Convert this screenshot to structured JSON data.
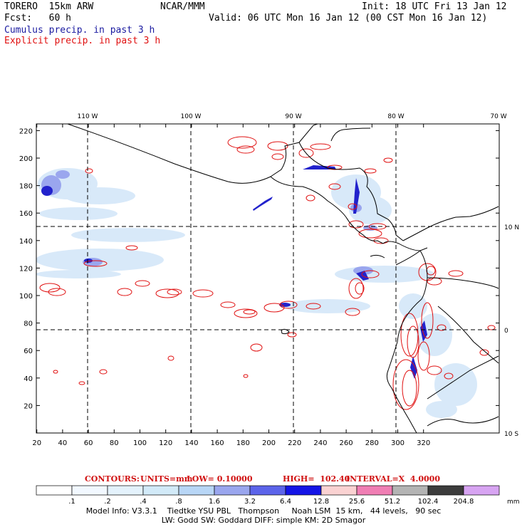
{
  "header": {
    "model": "TORERO  15km ARW",
    "org": "NCAR/MMM",
    "init": "Init: 18 UTC Fri 13 Jan 12",
    "fcst": "Fcst:   60 h",
    "valid": "Valid: 06 UTC Mon 16 Jan 12 (00 CST Mon 16 Jan 12)",
    "field1": "Cumulus precip. in past 3 h",
    "field2": "Explicit precip. in past 3 h"
  },
  "map": {
    "lon_labels": [
      "110 W",
      "100 W",
      "90 W",
      "80 W",
      "70 W"
    ],
    "lat_labels": [
      "10 N",
      "0",
      "10 S"
    ],
    "x_ticks": [
      "20",
      "40",
      "60",
      "80",
      "100",
      "120",
      "140",
      "160",
      "180",
      "200",
      "220",
      "240",
      "260",
      "280",
      "300",
      "320"
    ],
    "y_ticks": [
      "20",
      "40",
      "60",
      "80",
      "100",
      "120",
      "140",
      "160",
      "180",
      "200",
      "220"
    ],
    "colors": {
      "cumulus": "#2222cc",
      "explicit": "#e01010",
      "coast": "#000000",
      "grid": "#000000"
    }
  },
  "contour_info": {
    "contours": "CONTOURS:",
    "units": "UNITS=mm",
    "low": "LOW= 0.10000",
    "high": "HIGH=  102.40",
    "interval": "INTERVAL=X  4.0000"
  },
  "colorbar": {
    "labels": [
      ".1",
      ".2",
      ".4",
      ".8",
      "1.6",
      "3.2",
      "6.4",
      "12.8",
      "25.6",
      "51.2",
      "102.4",
      "204.8"
    ],
    "colors": [
      "#ffffff",
      "#f2f8ff",
      "#e4f2fc",
      "#d2eaf8",
      "#b8d6f6",
      "#9aa6ee",
      "#5c64ea",
      "#1414e6",
      "#fad2d2",
      "#f07eb4",
      "#b4b4b4",
      "#3c3c3c",
      "#d7a4f2"
    ],
    "unit": "mm"
  },
  "footer": {
    "line1": "Model Info: V3.3.1    Tiedtke YSU PBL   Thompson     Noah LSM  15 km,   44 levels,   90 sec",
    "line2": "LW: Godd SW: Goddard DIFF: simple KM: 2D Smagor"
  }
}
